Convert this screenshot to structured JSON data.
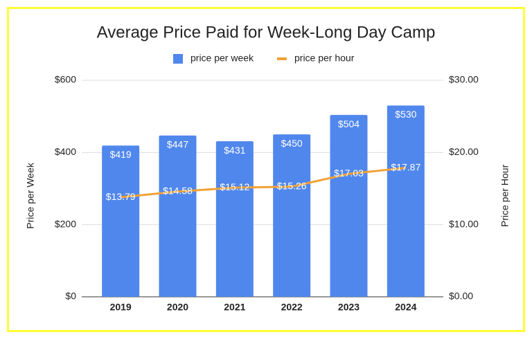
{
  "chart_data": {
    "type": "combo",
    "title": "Average Price Paid for Week-Long Day Camp",
    "categories": [
      "2019",
      "2020",
      "2021",
      "2022",
      "2023",
      "2024"
    ],
    "series": [
      {
        "name": "price per week",
        "type": "bar",
        "color": "#5087ec",
        "values": [
          419,
          447,
          431,
          450,
          504,
          530
        ],
        "value_labels": [
          "$419",
          "$447",
          "$431",
          "$450",
          "$504",
          "$530"
        ]
      },
      {
        "name": "price per hour",
        "type": "line",
        "axis": "y2",
        "color": "#f2a134",
        "values": [
          13.79,
          14.58,
          15.12,
          15.26,
          17.03,
          17.87
        ],
        "value_labels": [
          "$13.79",
          "$14.58",
          "$15.12",
          "$15.26",
          "$17.03",
          "$17.87"
        ]
      }
    ],
    "ylabel": "Price per Week",
    "y2label": "Price per Hour",
    "ylim": [
      0,
      600
    ],
    "yticks": [
      {
        "value": 0,
        "label": "$0"
      },
      {
        "value": 200,
        "label": "$200"
      },
      {
        "value": 400,
        "label": "$400"
      },
      {
        "value": 600,
        "label": "$600"
      }
    ],
    "y2lim": [
      0,
      30
    ],
    "y2ticks": [
      {
        "value": 0,
        "label": "$0.00"
      },
      {
        "value": 10,
        "label": "$10.00"
      },
      {
        "value": 20,
        "label": "$20.00"
      },
      {
        "value": 30,
        "label": "$30.00"
      }
    ],
    "grid": true,
    "legend": "top"
  }
}
